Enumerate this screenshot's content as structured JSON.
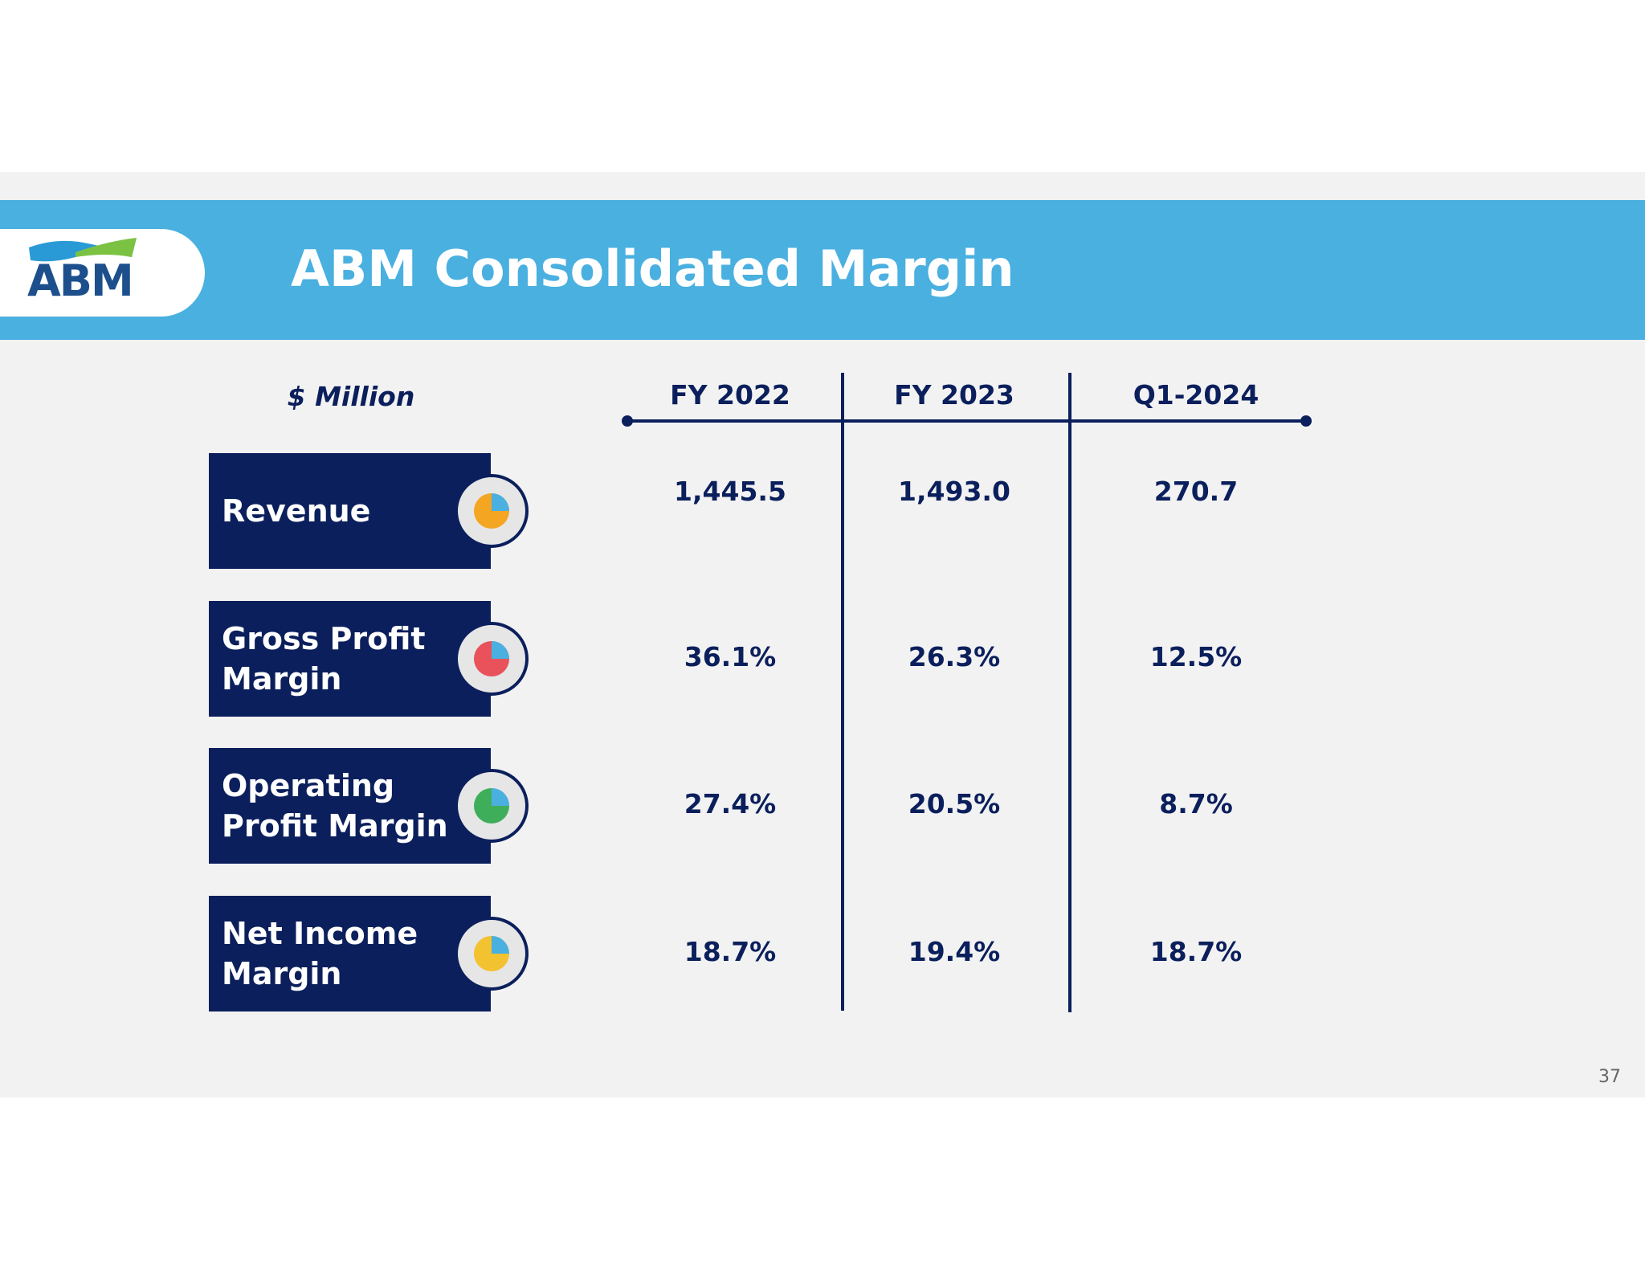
{
  "header": {
    "logo": "ABM",
    "title": "ABM Consolidated Margin"
  },
  "table": {
    "unit": "$ Million",
    "columns": [
      "FY 2022",
      "FY 2023",
      "Q1-2024"
    ],
    "rows": [
      {
        "label": [
          "Revenue"
        ],
        "values": [
          "1,445.5",
          "1,493.0",
          "270.7"
        ]
      },
      {
        "label": [
          "Gross Profit",
          "Margin"
        ],
        "values": [
          "36.1%",
          "26.3%",
          "12.5%"
        ]
      },
      {
        "label": [
          "Operating",
          "Profit  Margin"
        ],
        "values": [
          "27.4%",
          "20.5%",
          "8.7%"
        ]
      },
      {
        "label": [
          "Net Income",
          "Margin"
        ],
        "values": [
          "18.7%",
          "19.4%",
          "18.7%"
        ]
      }
    ]
  },
  "footer": {
    "page": "37"
  }
}
